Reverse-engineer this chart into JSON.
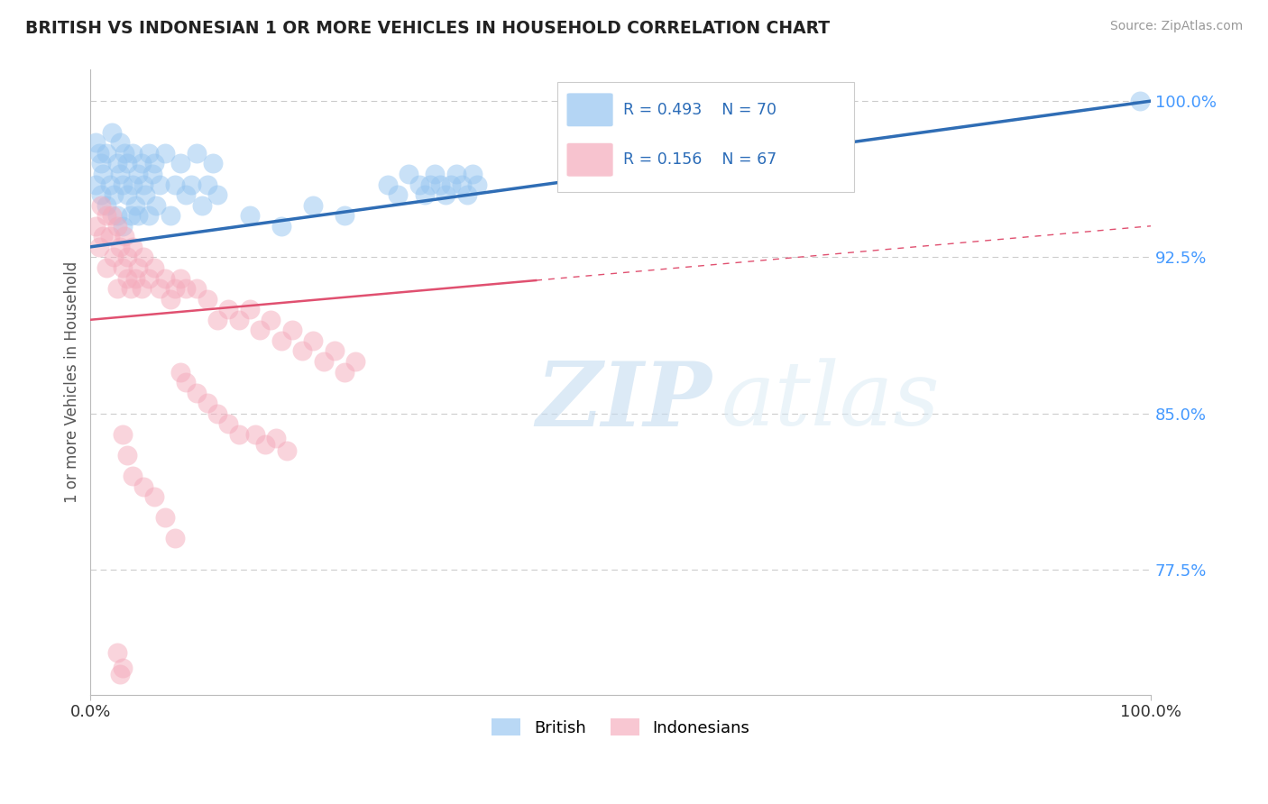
{
  "title": "BRITISH VS INDONESIAN 1 OR MORE VEHICLES IN HOUSEHOLD CORRELATION CHART",
  "source": "Source: ZipAtlas.com",
  "ylabel": "1 or more Vehicles in Household",
  "xlim": [
    0.0,
    1.0
  ],
  "ylim": [
    0.715,
    1.015
  ],
  "ytick_labels": [
    "77.5%",
    "85.0%",
    "92.5%",
    "100.0%"
  ],
  "ytick_values": [
    0.775,
    0.85,
    0.925,
    1.0
  ],
  "xtick_labels": [
    "0.0%",
    "100.0%"
  ],
  "xtick_values": [
    0.0,
    1.0
  ],
  "legend_british_R": "R = 0.493",
  "legend_british_N": "N = 70",
  "legend_indonesian_R": "R = 0.156",
  "legend_indonesian_N": "N = 67",
  "british_color": "#94C4F0",
  "indonesian_color": "#F5AABB",
  "british_line_color": "#2F6DB5",
  "indonesian_line_color": "#E05070",
  "background_color": "#FFFFFF",
  "grid_color": "#CCCCCC",
  "watermark_color": "#D8EAF7",
  "tick_color": "#4499FF",
  "title_color": "#222222",
  "source_color": "#999999",
  "ylabel_color": "#555555"
}
